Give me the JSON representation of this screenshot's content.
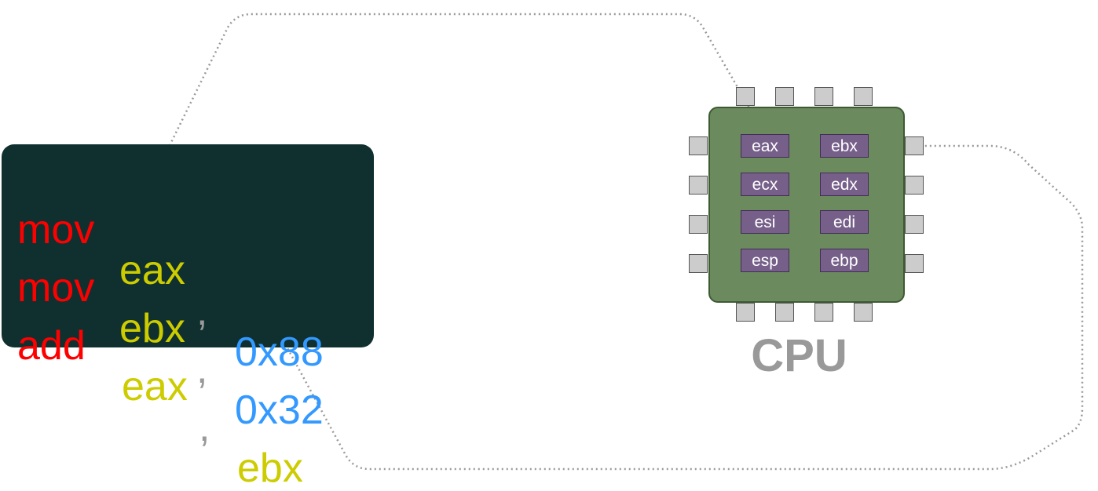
{
  "code": {
    "lines": [
      {
        "op": "mov",
        "dst": "eax",
        "sep": ",",
        "src": "0x88"
      },
      {
        "op": "mov",
        "dst": "ebx",
        "sep": ",",
        "src": "0x32"
      },
      {
        "op": "add",
        "dst": "eax",
        "sep": ",",
        "src": "ebx"
      }
    ]
  },
  "cpu": {
    "label": "CPU",
    "registers": [
      "eax",
      "ebx",
      "ecx",
      "edx",
      "esi",
      "edi",
      "esp",
      "ebp"
    ]
  },
  "colors": {
    "opcode": "#ff0000",
    "register": "#cccc00",
    "immediate": "#3399ff",
    "comma": "#999999",
    "code_background": "#103030",
    "chip": "#6b8a5e",
    "register_box": "#76608a"
  }
}
